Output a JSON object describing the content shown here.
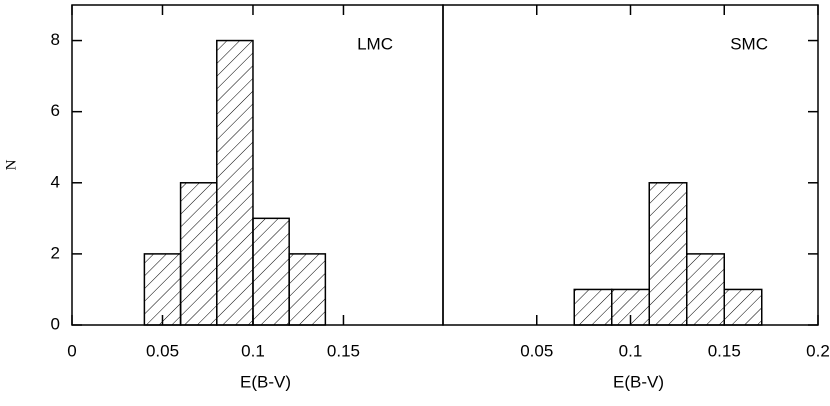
{
  "chart_data": [
    {
      "type": "histogram",
      "annotation": "LMC",
      "xlabel": "E(B-V)",
      "ylabel": "N",
      "bins": [
        0.04,
        0.06,
        0.08,
        0.1,
        0.12,
        0.14
      ],
      "values": [
        2,
        4,
        8,
        3,
        2
      ],
      "xlim": [
        0,
        0.205
      ],
      "xticks": [
        0,
        0.05,
        0.1,
        0.15
      ],
      "ylim": [
        0,
        9
      ],
      "yticks": [
        0,
        2,
        4,
        6,
        8
      ]
    },
    {
      "type": "histogram",
      "annotation": "SMC",
      "xlabel": "E(B-V)",
      "bins": [
        0.07,
        0.09,
        0.11,
        0.13,
        0.15,
        0.17
      ],
      "values": [
        1,
        1,
        4,
        2,
        1
      ],
      "xlim": [
        0,
        0.2
      ],
      "xticks": [
        0.05,
        0.1,
        0.15,
        0.2
      ],
      "ylim": [
        0,
        9
      ]
    }
  ]
}
